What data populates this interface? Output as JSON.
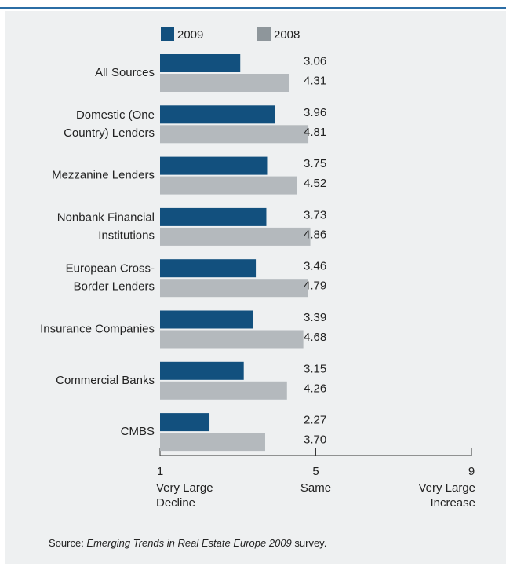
{
  "chart_data": {
    "type": "bar",
    "orientation": "horizontal",
    "categories": [
      [
        "All Sources"
      ],
      [
        "Domestic (One",
        "Country) Lenders"
      ],
      [
        "Mezzanine Lenders"
      ],
      [
        "Nonbank Financial",
        "Institutions"
      ],
      [
        "European Cross-",
        "Border Lenders"
      ],
      [
        "Insurance Companies"
      ],
      [
        "Commercial Banks"
      ],
      [
        "CMBS"
      ]
    ],
    "series": [
      {
        "name": "2009",
        "color": "#12507e",
        "values": [
          3.06,
          3.96,
          3.75,
          3.73,
          3.46,
          3.39,
          3.15,
          2.27
        ],
        "value_labels": [
          "3.06",
          "3.96",
          "3.75",
          "3.73",
          "3.46",
          "3.39",
          "3.15",
          "2.27"
        ]
      },
      {
        "name": "2008",
        "color": "#b4b9bd",
        "legend_color": "#8e969b",
        "values": [
          4.31,
          4.81,
          4.52,
          4.86,
          4.79,
          4.68,
          4.26,
          3.7
        ],
        "value_labels": [
          "4.31",
          "4.81",
          "4.52",
          "4.86",
          "4.79",
          "4.68",
          "4.26",
          "3.70"
        ]
      }
    ],
    "xlim": [
      1,
      9
    ],
    "xticks": [
      1,
      5,
      9
    ],
    "xtick_descriptions": [
      [
        "Very Large",
        "Decline"
      ],
      [
        "Same"
      ],
      [
        "Very Large",
        "Increase"
      ]
    ],
    "source": {
      "prefix": "Source: ",
      "italic": "Emerging Trends in Real Estate Europe 2009",
      "suffix": " survey."
    }
  }
}
